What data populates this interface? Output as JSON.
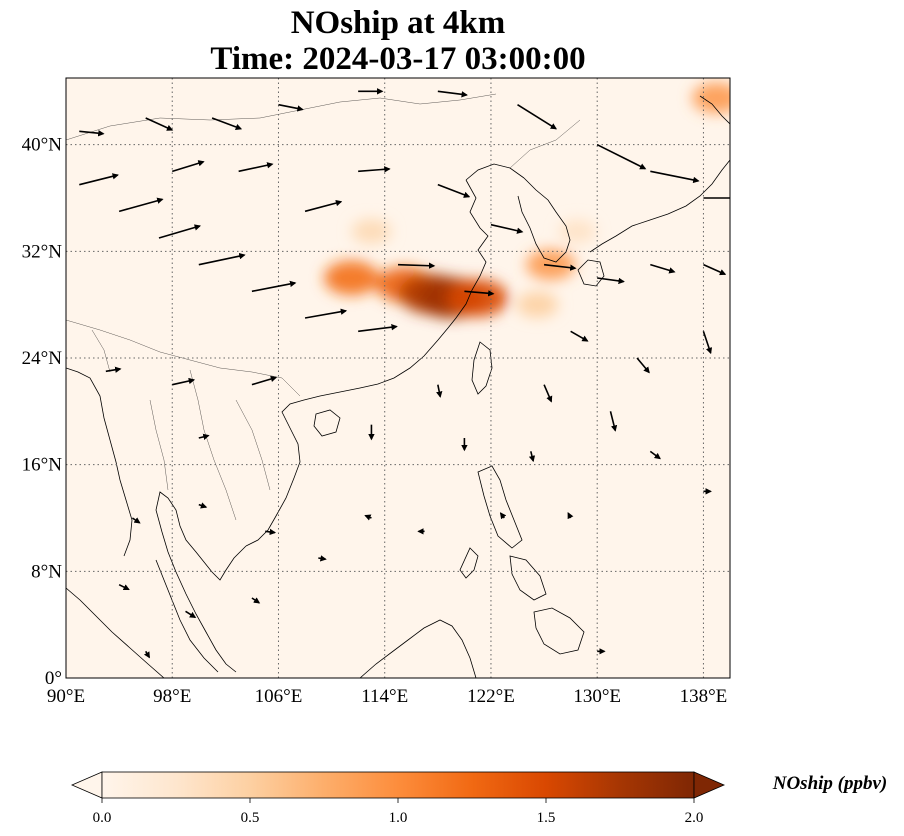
{
  "title": {
    "line1": "NOship at 4km",
    "line2": "Time: 2024-03-17 03:00:00"
  },
  "map": {
    "extent": {
      "lon": [
        90,
        140
      ],
      "lat": [
        0,
        45
      ]
    },
    "lon_ticks": [
      {
        "value": 90,
        "label": "90°E"
      },
      {
        "value": 98,
        "label": "98°E"
      },
      {
        "value": 106,
        "label": "106°E"
      },
      {
        "value": 114,
        "label": "114°E"
      },
      {
        "value": 122,
        "label": "122°E"
      },
      {
        "value": 130,
        "label": "130°E"
      },
      {
        "value": 138,
        "label": "138°E"
      }
    ],
    "lat_ticks": [
      {
        "value": 0,
        "label": "0°"
      },
      {
        "value": 8,
        "label": "8°N"
      },
      {
        "value": 16,
        "label": "16°N"
      },
      {
        "value": 24,
        "label": "24°N"
      },
      {
        "value": 32,
        "label": "32°N"
      },
      {
        "value": 40,
        "label": "40°N"
      }
    ],
    "gridlines": "dotted",
    "background_color": "#fff5eb"
  },
  "colorbar": {
    "label": "NOship (ppbv)",
    "range": [
      0.0,
      2.0
    ],
    "ticks": [
      {
        "value": 0.0,
        "label": "0.0"
      },
      {
        "value": 0.5,
        "label": "0.5"
      },
      {
        "value": 1.0,
        "label": "1.0"
      },
      {
        "value": 1.5,
        "label": "1.5"
      },
      {
        "value": 2.0,
        "label": "2.0"
      }
    ],
    "extend": "both",
    "colormap": [
      "#fff5eb",
      "#fee6ce",
      "#fdd0a2",
      "#fdae6b",
      "#fd8d3c",
      "#f16913",
      "#d94801",
      "#a63603",
      "#7f2704"
    ],
    "under_color": "#fff5eb",
    "over_color": "#7f2704"
  },
  "concentration_hotspots": [
    {
      "lon": 111.5,
      "lat": 30.0,
      "value": 1.2
    },
    {
      "lon": 115.5,
      "lat": 29.5,
      "value": 1.3
    },
    {
      "lon": 117.5,
      "lat": 28.8,
      "value": 1.7
    },
    {
      "lon": 119.0,
      "lat": 28.5,
      "value": 1.8
    },
    {
      "lon": 121.0,
      "lat": 28.5,
      "value": 1.5
    },
    {
      "lon": 126.5,
      "lat": 31.0,
      "value": 0.9
    },
    {
      "lon": 125.5,
      "lat": 28.0,
      "value": 0.5
    },
    {
      "lon": 139.0,
      "lat": 43.5,
      "value": 0.9
    },
    {
      "lon": 113.0,
      "lat": 33.5,
      "value": 0.4
    },
    {
      "lon": 128.5,
      "lat": 33.5,
      "value": 0.3
    }
  ],
  "wind_vectors_note_values": [
    {
      "lon": 91,
      "lat": 37,
      "u": 3.2,
      "v": 0.8
    },
    {
      "lon": 94,
      "lat": 35,
      "u": 3.6,
      "v": 1.0
    },
    {
      "lon": 97,
      "lat": 33,
      "u": 3.4,
      "v": 1.0
    },
    {
      "lon": 100,
      "lat": 31,
      "u": 3.8,
      "v": 0.8
    },
    {
      "lon": 104,
      "lat": 29,
      "u": 3.6,
      "v": 0.7
    },
    {
      "lon": 108,
      "lat": 27,
      "u": 3.4,
      "v": 0.6
    },
    {
      "lon": 112,
      "lat": 26,
      "u": 3.2,
      "v": 0.4
    },
    {
      "lon": 91,
      "lat": 41,
      "u": 2.0,
      "v": -0.2
    },
    {
      "lon": 96,
      "lat": 42,
      "u": 2.2,
      "v": -1.0
    },
    {
      "lon": 101,
      "lat": 42,
      "u": 2.4,
      "v": -0.9
    },
    {
      "lon": 106,
      "lat": 43,
      "u": 2.0,
      "v": -0.4
    },
    {
      "lon": 112,
      "lat": 44,
      "u": 2.0,
      "v": 0.0
    },
    {
      "lon": 118,
      "lat": 44,
      "u": 2.4,
      "v": -0.3
    },
    {
      "lon": 124,
      "lat": 43,
      "u": 3.2,
      "v": -2.0
    },
    {
      "lon": 130,
      "lat": 40,
      "u": 4.0,
      "v": -2.0
    },
    {
      "lon": 134,
      "lat": 38,
      "u": 4.0,
      "v": -0.8
    },
    {
      "lon": 138,
      "lat": 36,
      "u": 3.0,
      "v": 0.0
    },
    {
      "lon": 118,
      "lat": 37,
      "u": 2.6,
      "v": -1.0
    },
    {
      "lon": 122,
      "lat": 34,
      "u": 2.6,
      "v": -0.6
    },
    {
      "lon": 126,
      "lat": 31,
      "u": 2.6,
      "v": -0.3
    },
    {
      "lon": 130,
      "lat": 30,
      "u": 2.2,
      "v": -0.3
    },
    {
      "lon": 134,
      "lat": 31,
      "u": 2.0,
      "v": -0.6
    },
    {
      "lon": 138,
      "lat": 31,
      "u": 1.8,
      "v": -0.8
    },
    {
      "lon": 128,
      "lat": 26,
      "u": 1.4,
      "v": -0.8
    },
    {
      "lon": 133,
      "lat": 24,
      "u": 1.0,
      "v": -1.2
    },
    {
      "lon": 138,
      "lat": 26,
      "u": 0.6,
      "v": -1.8
    },
    {
      "lon": 126,
      "lat": 22,
      "u": 0.6,
      "v": -1.4
    },
    {
      "lon": 131,
      "lat": 20,
      "u": 0.4,
      "v": -1.6
    },
    {
      "lon": 118,
      "lat": 22,
      "u": 0.2,
      "v": -1.0
    },
    {
      "lon": 113,
      "lat": 19,
      "u": 0.0,
      "v": -1.2
    },
    {
      "lon": 120,
      "lat": 18,
      "u": 0.0,
      "v": -1.0
    },
    {
      "lon": 125,
      "lat": 17,
      "u": 0.2,
      "v": -0.8
    },
    {
      "lon": 134,
      "lat": 17,
      "u": 0.8,
      "v": -0.6
    },
    {
      "lon": 104,
      "lat": 22,
      "u": 2.0,
      "v": 0.6
    },
    {
      "lon": 98,
      "lat": 22,
      "u": 1.8,
      "v": 0.4
    },
    {
      "lon": 93,
      "lat": 23,
      "u": 1.2,
      "v": 0.2
    },
    {
      "lon": 100,
      "lat": 18,
      "u": 0.8,
      "v": 0.2
    },
    {
      "lon": 95,
      "lat": 12,
      "u": 0.6,
      "v": -0.4
    },
    {
      "lon": 100,
      "lat": 13,
      "u": 0.6,
      "v": -0.2
    },
    {
      "lon": 105,
      "lat": 11,
      "u": 0.8,
      "v": -0.1
    },
    {
      "lon": 109,
      "lat": 9,
      "u": 0.6,
      "v": -0.1
    },
    {
      "lon": 94,
      "lat": 7,
      "u": 0.8,
      "v": -0.4
    },
    {
      "lon": 99,
      "lat": 5,
      "u": 0.8,
      "v": -0.5
    },
    {
      "lon": 104,
      "lat": 6,
      "u": 0.6,
      "v": -0.4
    },
    {
      "lon": 96,
      "lat": 2,
      "u": 0.3,
      "v": -0.5
    },
    {
      "lon": 113,
      "lat": 12,
      "u": -0.5,
      "v": 0.2
    },
    {
      "lon": 117,
      "lat": 11,
      "u": -0.5,
      "v": 0.0
    },
    {
      "lon": 123,
      "lat": 12,
      "u": -0.3,
      "v": 0.4
    },
    {
      "lon": 128,
      "lat": 12,
      "u": -0.2,
      "v": 0.4
    },
    {
      "lon": 130,
      "lat": 2,
      "u": 0.6,
      "v": 0.0
    },
    {
      "lon": 138,
      "lat": 14,
      "u": 0.6,
      "v": 0.0
    },
    {
      "lon": 108,
      "lat": 35,
      "u": 3.0,
      "v": 0.8
    },
    {
      "lon": 112,
      "lat": 38,
      "u": 2.6,
      "v": 0.2
    },
    {
      "lon": 103,
      "lat": 38,
      "u": 2.8,
      "v": 0.6
    },
    {
      "lon": 98,
      "lat": 38,
      "u": 2.6,
      "v": 0.8
    },
    {
      "lon": 115,
      "lat": 31,
      "u": 3.0,
      "v": -0.1
    },
    {
      "lon": 120,
      "lat": 29,
      "u": 2.4,
      "v": -0.2
    }
  ]
}
